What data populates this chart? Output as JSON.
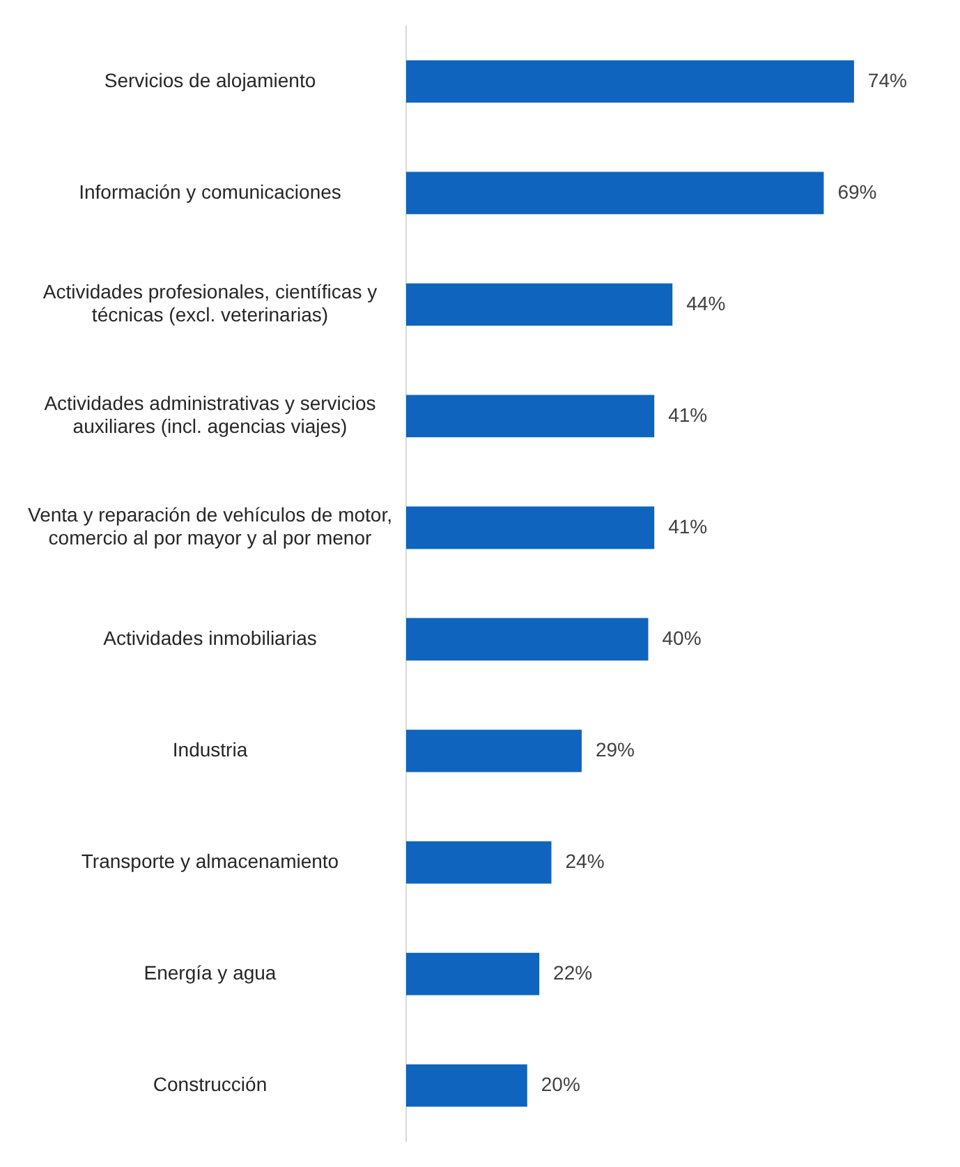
{
  "chart_data": {
    "type": "bar",
    "orientation": "horizontal",
    "categories": [
      "Servicios de alojamiento",
      "Información y comunicaciones",
      "Actividades profesionales, científicas y técnicas (excl. veterinarias)",
      "Actividades administrativas y servicios auxiliares (incl. agencias viajes)",
      "Venta y reparación de vehículos de motor, comercio al por mayor y al por menor",
      "Actividades inmobiliarias",
      "Industria",
      "Transporte y almacenamiento",
      "Energía y agua",
      "Construcción"
    ],
    "values": [
      74,
      69,
      44,
      41,
      41,
      40,
      29,
      24,
      22,
      20
    ],
    "color": "#0f64bd",
    "value_labels": [
      "74%",
      "69%",
      "44%",
      "41%",
      "41%",
      "40%",
      "29%",
      "24%",
      "22%",
      "20%"
    ],
    "tick_labels": "y",
    "grid": false,
    "legend": false
  }
}
